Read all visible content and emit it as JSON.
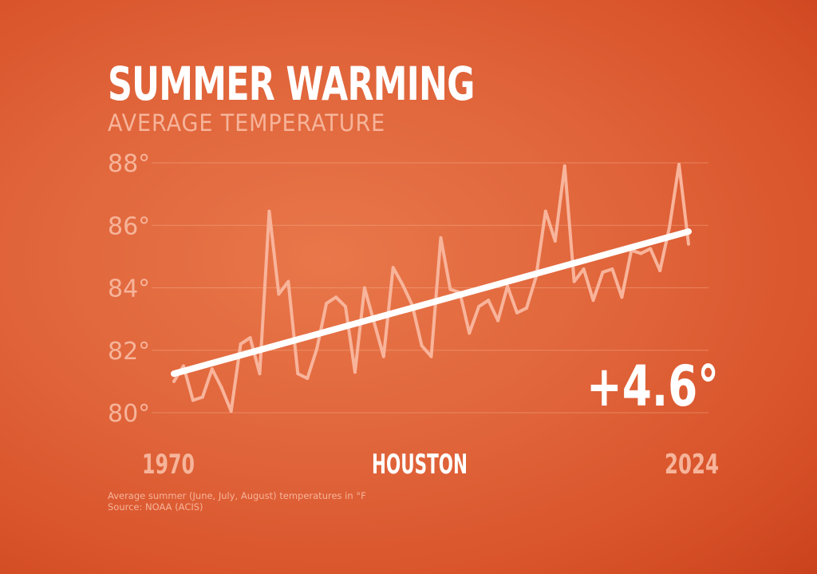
{
  "chart_data": {
    "type": "line",
    "title": "SUMMER WARMING",
    "subtitle": "AVERAGE TEMPERATURE",
    "location": "HOUSTON",
    "annotation": "+4.6°",
    "x_start_label": "1970",
    "x_end_label": "2024",
    "x": [
      1970,
      1971,
      1972,
      1973,
      1974,
      1975,
      1976,
      1977,
      1978,
      1979,
      1980,
      1981,
      1982,
      1983,
      1984,
      1985,
      1986,
      1987,
      1988,
      1989,
      1990,
      1991,
      1992,
      1993,
      1994,
      1995,
      1996,
      1997,
      1998,
      1999,
      2000,
      2001,
      2002,
      2003,
      2004,
      2005,
      2006,
      2007,
      2008,
      2009,
      2010,
      2011,
      2012,
      2013,
      2014,
      2015,
      2016,
      2017,
      2018,
      2019,
      2020,
      2021,
      2022,
      2023,
      2024
    ],
    "series": [
      {
        "values": [
          81.0,
          81.5,
          80.4,
          80.5,
          81.4,
          80.8,
          80.05,
          82.2,
          82.4,
          81.25,
          86.45,
          83.8,
          84.2,
          81.25,
          81.1,
          82.05,
          83.5,
          83.7,
          83.4,
          81.3,
          84.0,
          82.9,
          81.8,
          84.65,
          84.1,
          83.45,
          82.15,
          81.8,
          85.6,
          83.95,
          83.85,
          82.55,
          83.4,
          83.6,
          82.95,
          84.05,
          83.2,
          83.35,
          84.35,
          86.45,
          85.5,
          87.9,
          84.2,
          84.6,
          83.6,
          84.5,
          84.6,
          83.7,
          85.2,
          85.1,
          85.25,
          84.55,
          85.95,
          87.95,
          85.4
        ],
        "color": "#f8b49b"
      }
    ],
    "trend": {
      "start": 81.25,
      "end": 85.8,
      "color": "#ffffff"
    },
    "yticks": [
      80,
      82,
      84,
      86,
      88
    ],
    "ytick_labels": [
      "80°",
      "82°",
      "84°",
      "86°",
      "88°"
    ],
    "ylim": [
      80,
      88
    ],
    "grid": true,
    "footnote": "Average summer (June, July, August) temperatures in °F",
    "source": "Source: NOAA (ACIS)"
  }
}
